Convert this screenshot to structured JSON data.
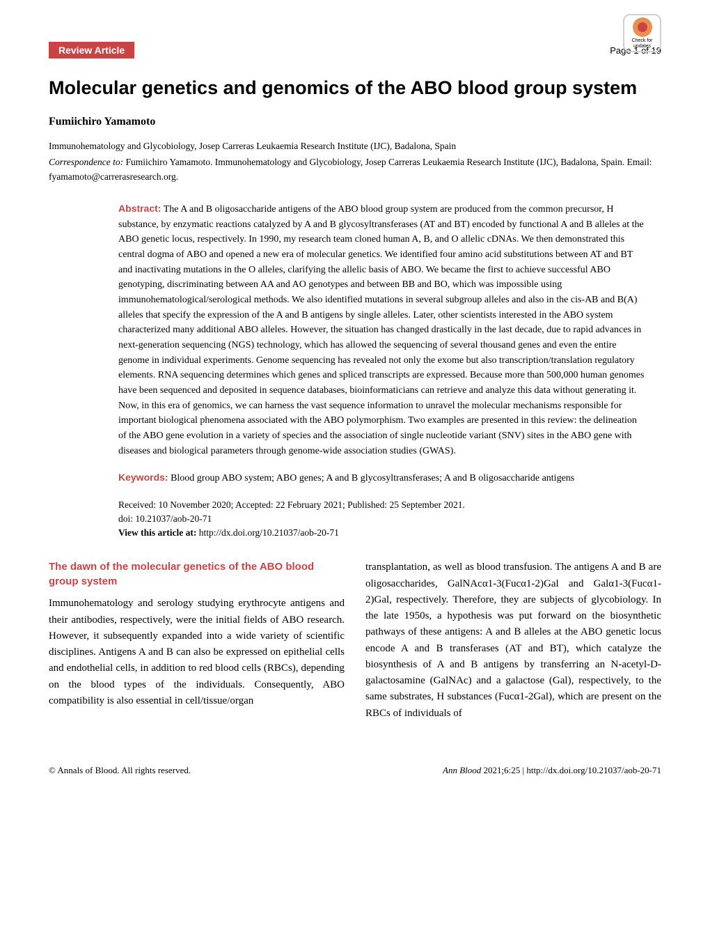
{
  "header": {
    "badge_label": "Review Article",
    "page_number": "Page 1 of 19",
    "check_updates_text": "Check for updates"
  },
  "title": "Molecular genetics and genomics of the ABO blood group system",
  "author": "Fumiichiro Yamamoto",
  "affiliation": "Immunohematology and Glycobiology, Josep Carreras Leukaemia Research Institute (IJC), Badalona, Spain",
  "correspondence": {
    "label": "Correspondence to:",
    "name": "Fumiichiro Yamamoto.",
    "text": "Immunohematology and Glycobiology, Josep Carreras Leukaemia Research Institute (IJC), Badalona, Spain. Email: fyamamoto@carrerasresearch.org."
  },
  "abstract": {
    "label": "Abstract:",
    "text": "The A and B oligosaccharide antigens of the ABO blood group system are produced from the common precursor, H substance, by enzymatic reactions catalyzed by A and B glycosyltransferases (AT and BT) encoded by functional A and B alleles at the ABO genetic locus, respectively. In 1990, my research team cloned human A, B, and O allelic cDNAs. We then demonstrated this central dogma of ABO and opened a new era of molecular genetics. We identified four amino acid substitutions between AT and BT and inactivating mutations in the O alleles, clarifying the allelic basis of ABO. We became the first to achieve successful ABO genotyping, discriminating between AA and AO genotypes and between BB and BO, which was impossible using immunohematological/serological methods. We also identified mutations in several subgroup alleles and also in the cis-AB and B(A) alleles that specify the expression of the A and B antigens by single alleles. Later, other scientists interested in the ABO system characterized many additional ABO alleles. However, the situation has changed drastically in the last decade, due to rapid advances in next-generation sequencing (NGS) technology, which has allowed the sequencing of several thousand genes and even the entire genome in individual experiments. Genome sequencing has revealed not only the exome but also transcription/translation regulatory elements. RNA sequencing determines which genes and spliced transcripts are expressed. Because more than 500,000 human genomes have been sequenced and deposited in sequence databases, bioinformaticians can retrieve and analyze this data without generating it. Now, in this era of genomics, we can harness the vast sequence information to unravel the molecular mechanisms responsible for important biological phenomena associated with the ABO polymorphism. Two examples are presented in this review: the delineation of the ABO gene evolution in a variety of species and the association of single nucleotide variant (SNV) sites in the ABO gene with diseases and biological parameters through genome-wide association studies (GWAS)."
  },
  "keywords": {
    "label": "Keywords:",
    "text": "Blood group ABO system; ABO genes; A and B glycosyltransferases; A and B oligosaccharide antigens"
  },
  "dates": {
    "received": "Received: 10 November 2020; Accepted: 22 February 2021; Published: 25 September 2021.",
    "doi": "doi: 10.21037/aob-20-71",
    "view_label": "View this article at:",
    "view_url": "http://dx.doi.org/10.21037/aob-20-71"
  },
  "section": {
    "heading": "The dawn of the molecular genetics of the ABO blood group system",
    "left_text": "Immunohematology and serology studying erythrocyte antigens and their antibodies, respectively, were the initial fields of ABO research. However, it subsequently expanded into a wide variety of scientific disciplines. Antigens A and B can also be expressed on epithelial cells and endothelial cells, in addition to red blood cells (RBCs), depending on the blood types of the individuals. Consequently, ABO compatibility is also essential in cell/tissue/organ",
    "right_text": "transplantation, as well as blood transfusion. The antigens A and B are oligosaccharides, GalNAcα1-3(Fucα1-2)Gal and Galα1-3(Fucα1-2)Gal, respectively. Therefore, they are subjects of glycobiology. In the late 1950s, a hypothesis was put forward on the biosynthetic pathways of these antigens: A and B alleles at the ABO genetic locus encode A and B transferases (AT and BT), which catalyze the biosynthesis of A and B antigens by transferring an N-acetyl-D-galactosamine (GalNAc) and a galactose (Gal), respectively, to the same substrates, H substances (Fucα1-2Gal), which are present on the RBCs of individuals of"
  },
  "footer": {
    "copyright": "© Annals of Blood. All rights reserved.",
    "citation_journal": "Ann Blood",
    "citation_text": "2021;6:25 | http://dx.doi.org/10.21037/aob-20-71"
  },
  "colors": {
    "accent_red": "#c94545",
    "badge_orange": "#e89050",
    "text": "#000000",
    "background": "#ffffff",
    "border_gray": "#d0d0d0"
  },
  "typography": {
    "title_fontsize": 27,
    "body_fontsize": 15,
    "abstract_fontsize": 14,
    "footer_fontsize": 13
  }
}
